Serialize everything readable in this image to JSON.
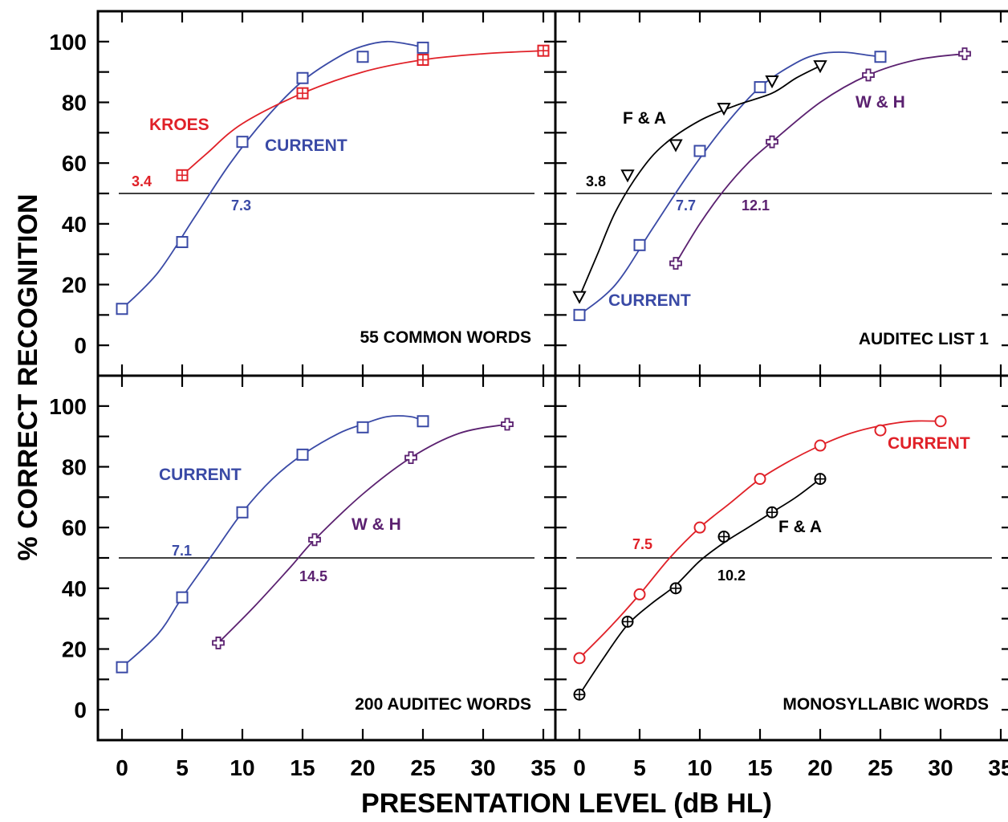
{
  "figure": {
    "xlabel": "PRESENTATION LEVEL (dB HL)",
    "ylabel": "% CORRECT RECOGNITION",
    "x_ticks": [
      0,
      5,
      10,
      15,
      20,
      25,
      30,
      35
    ],
    "y_ticks": [
      0,
      20,
      40,
      60,
      80,
      100
    ]
  },
  "chart_data": [
    {
      "type": "line",
      "title": "55 COMMON WORDS",
      "xlim": [
        -2,
        36
      ],
      "ylim": [
        -10,
        110
      ],
      "reference_line_y": 50,
      "series": [
        {
          "name": "CURRENT",
          "color": "#3a4aa6",
          "marker": "square",
          "x": [
            0,
            5,
            10,
            15,
            20,
            25
          ],
          "y": [
            12,
            34,
            67,
            88,
            95,
            98
          ],
          "curve": [
            [
              0,
              12
            ],
            [
              3,
              24
            ],
            [
              6,
              42
            ],
            [
              9,
              60
            ],
            [
              12,
              75
            ],
            [
              15,
              87
            ],
            [
              18,
              95
            ],
            [
              20,
              98.5
            ],
            [
              22,
              100
            ],
            [
              24,
              99
            ],
            [
              25,
              98
            ]
          ],
          "threshold_label": "7.3"
        },
        {
          "name": "KROES",
          "color": "#e02128",
          "marker": "square-plus",
          "x": [
            5,
            15,
            25,
            35
          ],
          "y": [
            56,
            83,
            94,
            97
          ],
          "curve": [
            [
              5,
              56
            ],
            [
              7,
              63
            ],
            [
              10,
              73
            ],
            [
              15,
              83
            ],
            [
              20,
              90
            ],
            [
              25,
              94
            ],
            [
              30,
              96
            ],
            [
              35,
              97
            ]
          ],
          "threshold_label": "3.4"
        }
      ]
    },
    {
      "type": "line",
      "title": "AUDITEC LIST 1",
      "xlim": [
        -2,
        36
      ],
      "ylim": [
        -10,
        110
      ],
      "reference_line_y": 50,
      "series": [
        {
          "name": "CURRENT",
          "color": "#3a4aa6",
          "marker": "square",
          "x": [
            0,
            5,
            10,
            15,
            25
          ],
          "y": [
            10,
            33,
            64,
            85,
            95
          ],
          "curve": [
            [
              0,
              10
            ],
            [
              3,
              20
            ],
            [
              6,
              38
            ],
            [
              9,
              56
            ],
            [
              12,
              72
            ],
            [
              15,
              85
            ],
            [
              18,
              93
            ],
            [
              20,
              96
            ],
            [
              22,
              96.5
            ],
            [
              24,
              95.5
            ],
            [
              25,
              95
            ]
          ],
          "threshold_label": "7.7"
        },
        {
          "name": "F & A",
          "color": "#000000",
          "marker": "triangle-down",
          "x": [
            0,
            4,
            8,
            12,
            16,
            20
          ],
          "y": [
            16,
            56,
            66,
            78,
            87,
            92
          ],
          "curve": [
            [
              0,
              16
            ],
            [
              1.5,
              30
            ],
            [
              3,
              44
            ],
            [
              5,
              57
            ],
            [
              7,
              66
            ],
            [
              10,
              74
            ],
            [
              13,
              79
            ],
            [
              16,
              83
            ],
            [
              18,
              88
            ],
            [
              20,
              92
            ]
          ],
          "threshold_label": "3.8"
        },
        {
          "name": "W & H",
          "color": "#5b2170",
          "marker": "plus",
          "x": [
            8,
            16,
            24,
            32
          ],
          "y": [
            27,
            67,
            89,
            96
          ],
          "curve": [
            [
              8,
              27
            ],
            [
              10,
              40
            ],
            [
              12,
              51
            ],
            [
              14,
              60
            ],
            [
              16,
              67
            ],
            [
              20,
              80
            ],
            [
              24,
              89
            ],
            [
              28,
              94
            ],
            [
              32,
              96
            ]
          ],
          "threshold_label": "12.1"
        }
      ]
    },
    {
      "type": "line",
      "title": "200 AUDITEC WORDS",
      "xlim": [
        -2,
        36
      ],
      "ylim": [
        -10,
        110
      ],
      "reference_line_y": 50,
      "series": [
        {
          "name": "CURRENT",
          "color": "#3a4aa6",
          "marker": "square",
          "x": [
            0,
            5,
            10,
            15,
            20,
            25
          ],
          "y": [
            14,
            37,
            65,
            84,
            93,
            95
          ],
          "curve": [
            [
              0,
              14
            ],
            [
              3,
              25
            ],
            [
              5,
              37
            ],
            [
              7.5,
              51
            ],
            [
              10,
              65
            ],
            [
              12.5,
              76
            ],
            [
              15,
              84
            ],
            [
              18,
              91
            ],
            [
              20,
              94
            ],
            [
              22,
              96.5
            ],
            [
              24,
              96.5
            ],
            [
              25,
              95
            ]
          ],
          "threshold_label": "7.1"
        },
        {
          "name": "W & H",
          "color": "#5b2170",
          "marker": "plus",
          "x": [
            8,
            16,
            24,
            32
          ],
          "y": [
            22,
            56,
            83,
            94
          ],
          "curve": [
            [
              8,
              22
            ],
            [
              11,
              34
            ],
            [
              14,
              47
            ],
            [
              16,
              56
            ],
            [
              20,
              71
            ],
            [
              24,
              83
            ],
            [
              28,
              91
            ],
            [
              32,
              94
            ]
          ],
          "threshold_label": "14.5"
        }
      ]
    },
    {
      "type": "line",
      "title": "MONOSYLLABIC WORDS",
      "xlim": [
        -2,
        36
      ],
      "ylim": [
        -10,
        110
      ],
      "reference_line_y": 50,
      "series": [
        {
          "name": "CURRENT",
          "color": "#e02128",
          "marker": "circle",
          "x": [
            0,
            5,
            10,
            15,
            20,
            25,
            30
          ],
          "y": [
            17,
            38,
            60,
            76,
            87,
            92,
            95
          ],
          "curve": [
            [
              0,
              17
            ],
            [
              2.5,
              27
            ],
            [
              5,
              38
            ],
            [
              7.5,
              50
            ],
            [
              10,
              60
            ],
            [
              12.5,
              68
            ],
            [
              15,
              76
            ],
            [
              17.5,
              82
            ],
            [
              20,
              87
            ],
            [
              22.5,
              91
            ],
            [
              25,
              93.5
            ],
            [
              27.5,
              95
            ],
            [
              30,
              95
            ]
          ],
          "threshold_label": "7.5"
        },
        {
          "name": "F & A",
          "color": "#000000",
          "marker": "circle-plus",
          "x": [
            0,
            4,
            8,
            12,
            16,
            20
          ],
          "y": [
            5,
            29,
            40,
            57,
            65,
            76
          ],
          "curve": [
            [
              0,
              5
            ],
            [
              2,
              17
            ],
            [
              4,
              28
            ],
            [
              6,
              35
            ],
            [
              8,
              41
            ],
            [
              10,
              49
            ],
            [
              12,
              55
            ],
            [
              14,
              60
            ],
            [
              16,
              65
            ],
            [
              18,
              70
            ],
            [
              20,
              76
            ]
          ],
          "threshold_label": "10.2"
        }
      ]
    }
  ]
}
